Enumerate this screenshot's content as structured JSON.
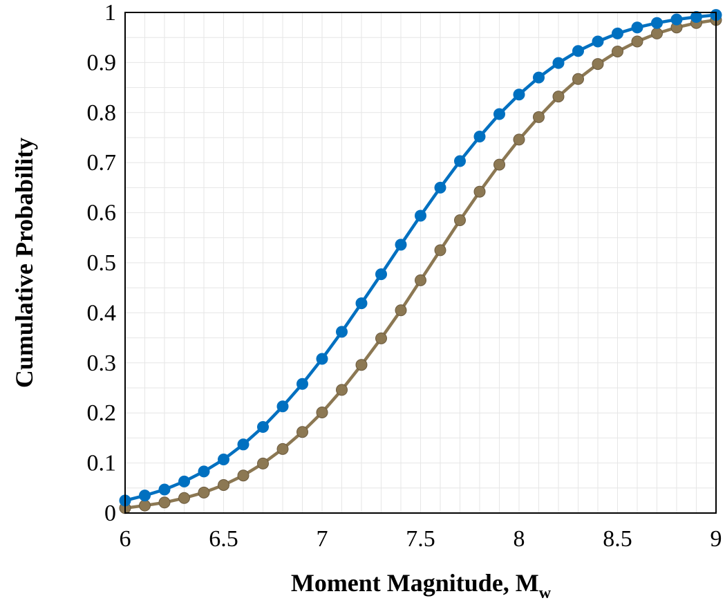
{
  "chart_data": {
    "type": "line",
    "xlabel": "Moment Magnitude, M",
    "xlabel_sub": "w",
    "ylabel": "Cumulative Probability",
    "xlim": [
      6,
      9
    ],
    "ylim": [
      0,
      1
    ],
    "x_ticks": [
      "6",
      "6.5",
      "7",
      "7.5",
      "8",
      "8.5",
      "9"
    ],
    "y_ticks": [
      "0",
      "0.1",
      "0.2",
      "0.3",
      "0.4",
      "0.5",
      "0.6",
      "0.7",
      "0.8",
      "0.9",
      "1"
    ],
    "grid": true,
    "x": [
      6.0,
      6.1,
      6.2,
      6.3,
      6.4,
      6.5,
      6.6,
      6.7,
      6.8,
      6.9,
      7.0,
      7.1,
      7.2,
      7.3,
      7.4,
      7.5,
      7.6,
      7.7,
      7.8,
      7.9,
      8.0,
      8.1,
      8.2,
      8.3,
      8.4,
      8.5,
      8.6,
      8.7,
      8.8,
      8.9,
      9.0
    ],
    "series": [
      {
        "color": "#0070c0",
        "values": [
          0.025,
          0.035,
          0.047,
          0.063,
          0.083,
          0.107,
          0.137,
          0.172,
          0.213,
          0.258,
          0.308,
          0.362,
          0.419,
          0.477,
          0.536,
          0.594,
          0.65,
          0.703,
          0.752,
          0.797,
          0.836,
          0.87,
          0.899,
          0.923,
          0.942,
          0.958,
          0.97,
          0.979,
          0.986,
          0.991,
          0.995
        ]
      },
      {
        "color": "#8c7853",
        "values": [
          0.01,
          0.015,
          0.021,
          0.03,
          0.041,
          0.056,
          0.075,
          0.099,
          0.128,
          0.162,
          0.201,
          0.246,
          0.296,
          0.349,
          0.405,
          0.465,
          0.525,
          0.585,
          0.642,
          0.696,
          0.746,
          0.791,
          0.832,
          0.867,
          0.897,
          0.922,
          0.942,
          0.958,
          0.97,
          0.979,
          0.985
        ]
      }
    ]
  }
}
